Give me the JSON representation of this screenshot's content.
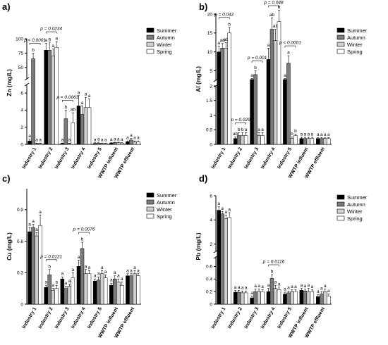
{
  "colors": {
    "Summer": "#000000",
    "Autumn": "#7a7a7a",
    "Winter": "#cfcfcf",
    "Spring": "#ffffff"
  },
  "chart_data": [
    {
      "type": "bar",
      "panel": "a)",
      "ylabel": "Zn (mg/L)",
      "categories": [
        "Industry 1",
        "Industry 2",
        "Industry 3",
        "Industry 4",
        "Industry 5",
        "WWTP influent",
        "WWTP effluent"
      ],
      "series": [
        {
          "name": "Summer",
          "values": [
            0.4,
            80,
            0.1,
            4.5,
            0.1,
            0.15,
            0.3
          ],
          "errors": [
            0.2,
            12,
            0.05,
            1.2,
            0.08,
            0.05,
            0.1
          ]
        },
        {
          "name": "Autumn",
          "values": [
            65,
            80,
            3.0,
            3.5,
            0.15,
            0.2,
            0.5
          ],
          "errors": [
            10,
            14,
            1.0,
            1.0,
            0.1,
            0.05,
            0.2
          ]
        },
        {
          "name": "Winter",
          "values": [
            0.1,
            70,
            0.1,
            4.3,
            0.1,
            0.2,
            0.3
          ],
          "errors": [
            0.05,
            12,
            0.05,
            1.2,
            0.05,
            0.05,
            0.1
          ]
        },
        {
          "name": "Spring",
          "values": [
            0.1,
            85,
            2.5,
            4.3,
            0.1,
            0.15,
            0.3
          ],
          "errors": [
            0.05,
            10,
            1.2,
            1.0,
            0.05,
            0.05,
            0.1
          ]
        }
      ],
      "yticks_lower": [
        0,
        2,
        4,
        6
      ],
      "yticks_upper": [
        50,
        75,
        100
      ],
      "axis_break": [
        7,
        30
      ],
      "sig_letters": [
        [
          "a",
          "b",
          "a",
          "a"
        ],
        [
          "a",
          "a",
          "a",
          "a"
        ],
        [
          "a",
          "b",
          "a",
          "ab"
        ],
        [
          "a",
          "a",
          "a",
          "a"
        ],
        [
          "a",
          "a",
          "a",
          "a"
        ],
        [
          "a",
          "a",
          "a",
          "a"
        ],
        [
          "a",
          "a",
          "a",
          "a"
        ]
      ],
      "pvalues": [
        {
          "label": "p < 0.0001",
          "cat": 0
        },
        {
          "label": "p = 0.0234",
          "cat": 1
        },
        {
          "label": "p = 0.0063",
          "cat": 2
        }
      ],
      "legend": [
        "Summer",
        "Autumn",
        "Winter",
        "Spring"
      ]
    },
    {
      "type": "bar",
      "panel": "b)",
      "ylabel": "Al (mg/L)",
      "categories": [
        "Industry 1",
        "Industry 2",
        "Industry 3",
        "Industry 4",
        "Industry 5",
        "WWTP influent",
        "WWTP effluent"
      ],
      "series": [
        {
          "name": "Summer",
          "values": [
            10,
            0.2,
            2.7,
            8,
            2.7,
            0.2,
            0.2
          ],
          "errors": [
            1.5,
            0.05,
            0.3,
            3,
            0.3,
            0.04,
            0.03
          ]
        },
        {
          "name": "Autumn",
          "values": [
            11,
            0.3,
            4,
            16,
            7,
            0.2,
            0.2
          ],
          "errors": [
            1.2,
            0.1,
            1,
            3,
            2,
            0.04,
            0.03
          ]
        },
        {
          "name": "Winter",
          "values": [
            11,
            0.3,
            0.3,
            13,
            0.2,
            0.2,
            0.2
          ],
          "errors": [
            1.5,
            0.1,
            0.1,
            3,
            0.05,
            0.04,
            0.03
          ]
        },
        {
          "name": "Spring",
          "values": [
            15,
            0.3,
            0.3,
            18,
            0.3,
            0.2,
            0.2
          ],
          "errors": [
            1.5,
            0.1,
            0.1,
            3,
            0.05,
            0.04,
            0.03
          ]
        }
      ],
      "yticks_lower": [
        0.0,
        0.5,
        1.0,
        1.5,
        2.0
      ],
      "yticks_upper": [
        5,
        10,
        15,
        20
      ],
      "axis_break": [
        2.0,
        2.5
      ],
      "sig_letters": [
        [
          "a",
          "ab",
          "ab",
          "b"
        ],
        [
          "ab",
          "b",
          "b",
          "a"
        ],
        [
          "a",
          "b",
          "a",
          "a"
        ],
        [
          "a",
          "ab",
          "ab",
          "b"
        ],
        [
          "a",
          "a",
          "b",
          "b"
        ],
        [
          "a",
          "a",
          "a",
          "a"
        ],
        [
          "a",
          "a",
          "a",
          "a"
        ]
      ],
      "pvalues": [
        {
          "label": "p = 0.042",
          "cat": 0
        },
        {
          "label": "p = 0.029",
          "cat": 1
        },
        {
          "label": "p = 0.001",
          "cat": 2
        },
        {
          "label": "p = 0.048",
          "cat": 3
        },
        {
          "label": "p < 0.0001",
          "cat": 4
        }
      ],
      "legend": [
        "Summer",
        "Autumn",
        "Winter",
        "Spring"
      ]
    },
    {
      "type": "bar",
      "panel": "c)",
      "ylabel": "Cu (mg/L)",
      "categories": [
        "Industry 1",
        "Industry 2",
        "Industry 3",
        "Industry 4",
        "Industry 5",
        "WWTP influent",
        "WWTP effluent"
      ],
      "series": [
        {
          "name": "Summer",
          "values": [
            0.69,
            0.16,
            0.24,
            0.36,
            0.22,
            0.18,
            0.27
          ],
          "errors": [
            0.04,
            0.02,
            0.02,
            0.06,
            0.02,
            0.02,
            0.02
          ]
        },
        {
          "name": "Autumn",
          "values": [
            0.73,
            0.28,
            0.15,
            0.53,
            0.23,
            0.24,
            0.27
          ],
          "errors": [
            0.03,
            0.05,
            0.02,
            0.06,
            0.03,
            0.03,
            0.02
          ]
        },
        {
          "name": "Winter",
          "values": [
            0.65,
            0.13,
            0.17,
            0.29,
            0.29,
            0.21,
            0.29
          ],
          "errors": [
            0.03,
            0.02,
            0.02,
            0.04,
            0.03,
            0.03,
            0.03
          ]
        },
        {
          "name": "Spring",
          "values": [
            0.75,
            0.15,
            0.25,
            0.29,
            0.25,
            0.18,
            0.27
          ],
          "errors": [
            0.1,
            0.03,
            0.05,
            0.03,
            0.03,
            0.03,
            0.02
          ]
        }
      ],
      "ylim": [
        0,
        1.1
      ],
      "yticks": [
        0.0,
        0.3,
        0.6,
        0.9
      ],
      "sig_letters": [
        [
          "a",
          "a",
          "a",
          "a"
        ],
        [
          "a",
          "b",
          "a",
          "a"
        ],
        [
          "a",
          "a",
          "a",
          "a"
        ],
        [
          "a",
          "b",
          "a",
          "a"
        ],
        [
          "a",
          "a",
          "a",
          "a"
        ],
        [
          "a",
          "a",
          "a",
          "a"
        ],
        [
          "a",
          "a",
          "a",
          "a"
        ]
      ],
      "pvalues": [
        {
          "label": "p = 0.0121",
          "cat": 1
        },
        {
          "label": "p = 0.0076",
          "cat": 3
        }
      ],
      "legend": [
        "Summer",
        "Autumn",
        "Winter",
        "Spring"
      ]
    },
    {
      "type": "bar",
      "panel": "d)",
      "ylabel": "Pb (mg/L)",
      "categories": [
        "Industry 1",
        "Industry 2",
        "Industry 3",
        "Industry 4",
        "Industry 5",
        "WWTP influent",
        "WWTP effluent"
      ],
      "series": [
        {
          "name": "Summer",
          "values": [
            4.8,
            0.19,
            0.1,
            0.2,
            0.16,
            0.22,
            0.12
          ],
          "errors": [
            0.3,
            0.03,
            0.03,
            0.05,
            0.03,
            0.03,
            0.03
          ]
        },
        {
          "name": "Autumn",
          "values": [
            4.5,
            0.19,
            0.2,
            0.41,
            0.18,
            0.21,
            0.16
          ],
          "errors": [
            0.2,
            0.03,
            0.04,
            0.06,
            0.03,
            0.03,
            0.04
          ]
        },
        {
          "name": "Winter",
          "values": [
            4.1,
            0.18,
            0.2,
            0.25,
            0.2,
            0.2,
            0.2
          ],
          "errors": [
            0.3,
            0.03,
            0.04,
            0.05,
            0.03,
            0.05,
            0.04
          ]
        },
        {
          "name": "Spring",
          "values": [
            4.2,
            0.18,
            0.2,
            0.23,
            0.2,
            0.2,
            0.13
          ],
          "errors": [
            0.4,
            0.03,
            0.03,
            0.04,
            0.03,
            0.03,
            0.03
          ]
        }
      ],
      "yticks_lower": [
        0.0,
        0.2,
        0.4,
        0.6
      ],
      "yticks_upper": [
        2,
        4,
        6
      ],
      "axis_break": [
        0.75,
        1.4
      ],
      "sig_letters": [
        [
          "a",
          "a",
          "a",
          "a"
        ],
        [
          "a",
          "a",
          "a",
          "a"
        ],
        [
          "a",
          "a",
          "a",
          "a"
        ],
        [
          "a",
          "b",
          "a",
          "a"
        ],
        [
          "a",
          "a",
          "a",
          "a"
        ],
        [
          "a",
          "a",
          "a",
          "a"
        ],
        [
          "a",
          "a",
          "a",
          "a"
        ]
      ],
      "pvalues": [
        {
          "label": "p = 0.0116",
          "cat": 3
        }
      ],
      "legend": [
        "Summer",
        "Autumn",
        "Winter",
        "Spring"
      ]
    }
  ]
}
